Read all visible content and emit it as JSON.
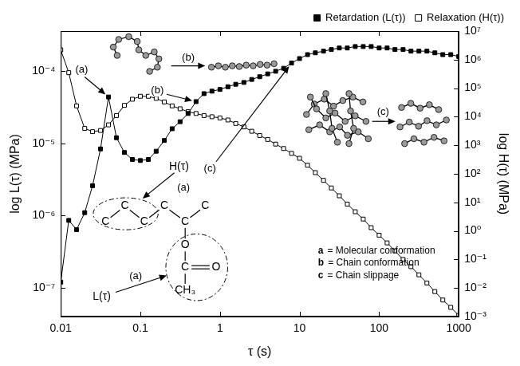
{
  "chart_data": {
    "type": "line",
    "x_label": "τ (s)",
    "y_label": "log L(τ) (MPa)",
    "y2_label": "log H(τ) (MPa)",
    "log": true,
    "grid": false,
    "legend": "top right",
    "x": [
      0.01,
      0.0126,
      0.0158,
      0.02,
      0.0251,
      0.0316,
      0.0398,
      0.0501,
      0.0631,
      0.0794,
      0.1,
      0.126,
      0.158,
      0.2,
      0.251,
      0.316,
      0.398,
      0.501,
      0.631,
      0.794,
      1,
      1.26,
      1.58,
      2,
      2.51,
      3.16,
      3.98,
      5.01,
      6.31,
      7.94,
      10,
      12.6,
      15.8,
      20,
      25.1,
      31.6,
      39.8,
      50.1,
      63.1,
      79.4,
      100,
      126,
      158,
      200,
      251,
      316,
      398,
      501,
      631,
      794,
      1000
    ],
    "xlim": [
      0.01,
      1000
    ],
    "xticks": [
      0.01,
      0.1,
      1,
      10,
      100,
      1000
    ],
    "ylim": [
      4e-08,
      0.00036
    ],
    "yticks": [
      {
        "value": 1e-07,
        "label": "10⁻⁷"
      },
      {
        "value": 1e-06,
        "label": "10⁻⁶"
      },
      {
        "value": 1e-05,
        "label": "10⁻⁵"
      },
      {
        "value": 0.0001,
        "label": "10⁻⁴"
      }
    ],
    "y2lim": [
      0.001,
      10000000.0
    ],
    "y2ticks": [
      {
        "value": 0.001,
        "label": "10⁻³"
      },
      {
        "value": 0.01,
        "label": "10⁻²"
      },
      {
        "value": 0.1,
        "label": "10⁻¹"
      },
      {
        "value": 1,
        "label": "10⁰"
      },
      {
        "value": 10,
        "label": "10¹"
      },
      {
        "value": 100,
        "label": "10²"
      },
      {
        "value": 1000,
        "label": "10³"
      },
      {
        "value": 10000,
        "label": "10⁴"
      },
      {
        "value": 100000,
        "label": "10⁵"
      },
      {
        "value": 1000000,
        "label": "10⁶"
      },
      {
        "value": 10000000.0,
        "label": "10⁷"
      }
    ],
    "series": [
      {
        "name": "Retardation (L(τ))",
        "color": "#000000",
        "marker": "square",
        "line_style": "solid",
        "values": [
          1.2e-07,
          8.6e-07,
          6.4e-07,
          1.1e-06,
          2.6e-06,
          8.4e-06,
          4.4e-05,
          1.2e-05,
          7.5e-06,
          6e-06,
          5.8e-06,
          6e-06,
          7.8e-06,
          1.1e-05,
          1.6e-05,
          2e-05,
          2.6e-05,
          3.8e-05,
          4.9e-05,
          5.3e-05,
          5.6e-05,
          6.1e-05,
          6.6e-05,
          7e-05,
          7.7e-05,
          8.4e-05,
          9.2e-05,
          0.0001,
          0.00011,
          0.00013,
          0.00015,
          0.00017,
          0.00018,
          0.00019,
          0.0002,
          0.00021,
          0.00021,
          0.00022,
          0.00022,
          0.00022,
          0.00021,
          0.00021,
          0.0002,
          0.0002,
          0.00019,
          0.00019,
          0.00019,
          0.00018,
          0.00017,
          0.00017,
          0.00016
        ]
      },
      {
        "name": "Relaxation (H(τ))",
        "color": "#000000",
        "marker": "open_square",
        "line_style": "solid",
        "axis": "y2",
        "values": [
          2200000.0,
          350000.0,
          24000.0,
          3900,
          3000,
          3300,
          5200,
          11000.0,
          25000.0,
          41000.0,
          52000.0,
          52000.0,
          44000.0,
          33000.0,
          24000.0,
          19000.0,
          15000.0,
          13000.0,
          11000.0,
          10000.0,
          9100,
          7700,
          5800,
          4400,
          3100,
          2200,
          1600,
          1100,
          770,
          520,
          350,
          200,
          110,
          59,
          32,
          17,
          8.7,
          4.7,
          2.6,
          1.3,
          0.71,
          0.38,
          0.2,
          0.1,
          0.056,
          0.029,
          0.015,
          0.0075,
          0.0038,
          0.0021,
          0.0011
        ]
      }
    ],
    "annotations": {
      "arrows": [
        "(a)",
        "(b)",
        "(c)"
      ],
      "drawings": [
        "(b)",
        "(c)"
      ],
      "structure": {
        "atoms": [
          "C",
          "C",
          "C",
          "C",
          "C",
          "C",
          "O",
          "C",
          "O",
          "CH₃"
        ],
        "labels": [
          {
            "text": "H(τ)",
            "arrow": "(a)"
          },
          {
            "text": "L(τ)",
            "arrow": "(a)"
          }
        ]
      },
      "key": [
        {
          "letter": "a",
          "text": "= Molecular conformation"
        },
        {
          "letter": "b",
          "text": "= Chain conformation"
        },
        {
          "letter": "c",
          "text": "= Chain slippage"
        }
      ]
    }
  }
}
